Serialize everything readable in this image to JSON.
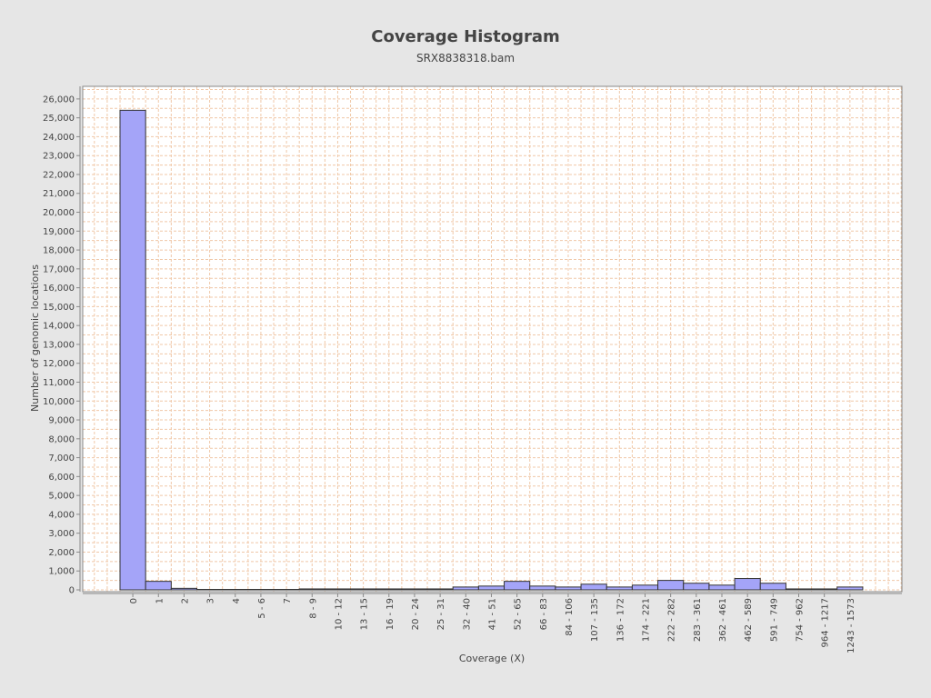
{
  "chart_data": {
    "type": "bar",
    "title": "Coverage Histogram",
    "subtitle": "SRX8838318.bam",
    "xlabel": "Coverage (X)",
    "ylabel": "Number of genomic locations",
    "ylim": [
      0,
      26800
    ],
    "yticks": [
      0,
      1000,
      2000,
      3000,
      4000,
      5000,
      6000,
      7000,
      8000,
      9000,
      10000,
      11000,
      12000,
      13000,
      14000,
      15000,
      16000,
      17000,
      18000,
      19000,
      20000,
      21000,
      22000,
      23000,
      24000,
      25000,
      26000
    ],
    "grid": true,
    "categories": [
      "0",
      "1",
      "2",
      "3",
      "4",
      "5 - 6",
      "7",
      "8 - 9",
      "10 - 12",
      "13 - 15",
      "16 - 19",
      "20 - 24",
      "25 - 31",
      "32 - 40",
      "41 - 51",
      "52 - 65",
      "66 - 83",
      "84 - 106",
      "107 - 135",
      "136 - 172",
      "174 - 221",
      "222 - 282",
      "283 - 361",
      "362 - 461",
      "462 - 589",
      "591 - 749",
      "754 - 962",
      "964 - 1217",
      "1243 - 1573"
    ],
    "tick_labels": [
      "0",
      "1",
      "2",
      "3",
      "4",
      "5 - 6",
      "7",
      "8 - 9",
      "10 - 12",
      "13 - 15",
      "16 - 19",
      "20 - 24",
      "25 - 31",
      "32 - 40",
      "41 - 51",
      "52 - 65",
      "66 - 83",
      "84 - 106",
      "107 - 135",
      "136 - 172",
      "174 - 221",
      "222 - 282",
      "283 - 361",
      "362 - 461",
      "462 - 589",
      "591 - 749",
      "754 - 962",
      "964 - 1217",
      "1243 - 1573"
    ],
    "values": [
      25400,
      450,
      80,
      10,
      10,
      10,
      10,
      50,
      50,
      50,
      50,
      50,
      50,
      150,
      200,
      450,
      200,
      150,
      300,
      150,
      250,
      500,
      350,
      250,
      600,
      350,
      50,
      50,
      150
    ],
    "colors": {
      "background": "#e6e6e6",
      "plot_background": "#ffffff",
      "bar_fill": "#a4a4f8",
      "bar_stroke": "#333333",
      "grid": "#f0c8a8",
      "text": "#444444"
    }
  }
}
